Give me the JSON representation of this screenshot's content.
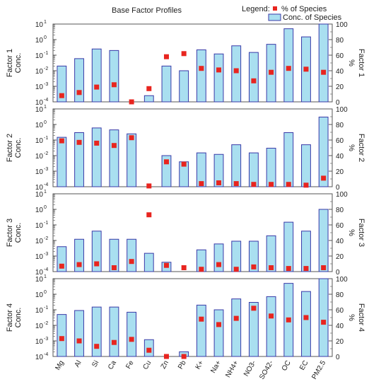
{
  "title": "Base Factor Profiles",
  "legend": {
    "label": "Legend:",
    "percent_label": "% of Species",
    "conc_label": "Conc. of Species",
    "placement": "top-right"
  },
  "colors": {
    "bar_fill": "#a9dff0",
    "bar_stroke": "#3a3aa8",
    "marker": "#e8251f",
    "frame": "#555555",
    "grid": "#dddddd"
  },
  "chart_data": {
    "type": "bar",
    "categories": [
      "Mg",
      "Al",
      "Si",
      "Ca",
      "Fe",
      "Cu",
      "Zn",
      "Pb",
      "K+",
      "Na+",
      "NH4+",
      "NO3-",
      "SO42-",
      "OC",
      "EC",
      "PM2.5"
    ],
    "left_axis": {
      "scale": "log",
      "range": [
        0.0001,
        10
      ],
      "ticks": [
        "10",
        "10",
        "10",
        "10",
        "10",
        "10"
      ],
      "tick_exponents": [
        "-4",
        "-3",
        "-2",
        "-1",
        "0",
        "1"
      ]
    },
    "right_axis": {
      "label": "%",
      "range": [
        0,
        100
      ],
      "ticks": [
        "0",
        "20",
        "40",
        "60",
        "80",
        "100"
      ]
    },
    "panels": [
      {
        "name": "Factor 1",
        "left_label_line1": "Factor 1",
        "left_label_line2": "Conc.",
        "right_label": "Factor 1",
        "conc": [
          0.02,
          0.06,
          0.25,
          0.2,
          null,
          0.00025,
          0.02,
          0.01,
          0.22,
          0.12,
          0.4,
          0.15,
          0.5,
          5,
          1.5,
          10
        ],
        "percent": [
          8,
          12,
          19,
          22,
          0,
          17,
          58,
          62,
          43,
          41,
          40,
          27,
          38,
          43,
          42,
          38
        ]
      },
      {
        "name": "Factor 2",
        "left_label_line1": "Factor 2",
        "left_label_line2": "Conc.",
        "right_label": "Factor 2",
        "conc": [
          0.15,
          0.3,
          0.6,
          0.45,
          0.25,
          null,
          0.01,
          0.004,
          0.015,
          0.012,
          0.05,
          0.015,
          0.03,
          0.3,
          0.05,
          3
        ],
        "percent": [
          59,
          57,
          56,
          53,
          63,
          1,
          32,
          29,
          4,
          5,
          4,
          3,
          3,
          3,
          2,
          11
        ]
      },
      {
        "name": "Factor 3",
        "left_label_line1": "Factor 3",
        "left_label_line2": "Conc.",
        "right_label": "Factor 3",
        "conc": [
          0.004,
          0.012,
          0.04,
          0.012,
          0.012,
          0.0015,
          0.0004,
          null,
          0.0025,
          0.006,
          0.009,
          0.009,
          0.02,
          0.15,
          0.04,
          1
        ],
        "percent": [
          7,
          9,
          10,
          5,
          13,
          73,
          8,
          5,
          3,
          9,
          3,
          6,
          5,
          4,
          4,
          5
        ]
      },
      {
        "name": "Factor 4",
        "left_label_line1": "Factor 4",
        "left_label_line2": "Conc.",
        "right_label": "Factor 4",
        "conc": [
          0.05,
          0.09,
          0.15,
          0.15,
          0.07,
          0.0012,
          null,
          0.0002,
          0.2,
          0.1,
          0.5,
          0.3,
          0.7,
          5,
          1.5,
          15
        ],
        "percent": [
          23,
          20,
          13,
          18,
          22,
          8,
          0,
          0,
          48,
          41,
          49,
          62,
          52,
          47,
          50,
          44
        ]
      }
    ]
  }
}
